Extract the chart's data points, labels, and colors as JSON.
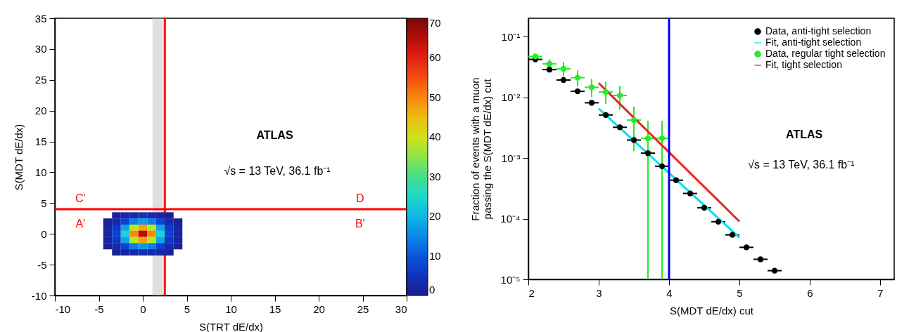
{
  "chart_data": [
    {
      "type": "scatter",
      "xlabel": "S(TRT dE/dx)",
      "ylabel": "S(MDT dE/dx)",
      "marker": "square",
      "x": [
        -3,
        -2,
        -1,
        0,
        1,
        2,
        3,
        -4,
        -3,
        -2,
        -1,
        0,
        1,
        2,
        3,
        4,
        -4,
        -3,
        -2,
        -1,
        0,
        1,
        2,
        3,
        4,
        -4,
        -3,
        -2,
        -1,
        0,
        1,
        2,
        3,
        4,
        -4,
        -3,
        -2,
        -1,
        0,
        1,
        2,
        3,
        4,
        -4,
        -3,
        -2,
        -1,
        0,
        1,
        2,
        3,
        4,
        -3,
        -2,
        -1,
        0,
        1,
        2,
        3
      ],
      "values": [
        3,
        3,
        3,
        3,
        3,
        3,
        3,
        2,
        2,
        2,
        2,
        2,
        2,
        2,
        2,
        2,
        1,
        1,
        1,
        1,
        1,
        1,
        1,
        1,
        1,
        0,
        0,
        0,
        0,
        0,
        0,
        0,
        0,
        0,
        -1,
        -1,
        -1,
        -1,
        -1,
        -1,
        -1,
        -1,
        -1,
        -2,
        -2,
        -2,
        -2,
        -2,
        -2,
        -2,
        -2,
        -2,
        -3,
        -3,
        -3,
        -3,
        -3,
        -3,
        -3
      ],
      "cvalues": [
        1,
        2,
        3,
        4,
        3,
        2,
        1,
        1,
        3,
        8,
        14,
        17,
        14,
        8,
        3,
        1,
        2,
        6,
        18,
        38,
        48,
        38,
        18,
        6,
        2,
        2,
        8,
        24,
        50,
        65,
        50,
        24,
        8,
        2,
        2,
        6,
        18,
        38,
        48,
        38,
        18,
        6,
        2,
        1,
        3,
        8,
        14,
        17,
        14,
        8,
        3,
        1,
        1,
        2,
        3,
        4,
        3,
        2,
        1
      ],
      "clim": [
        0,
        70
      ],
      "cticks": [
        0,
        10,
        20,
        30,
        40,
        50,
        60,
        70
      ],
      "xlim": [
        -10,
        30
      ],
      "xticks": [
        -10,
        -5,
        0,
        5,
        10,
        15,
        20,
        25,
        30
      ],
      "ylim": [
        -10,
        35
      ],
      "yticks": [
        -10,
        -5,
        0,
        5,
        10,
        15,
        20,
        25,
        30,
        35
      ],
      "bands": [
        {
          "axis": "x",
          "from": 1.1,
          "to": 2.3,
          "color": "#bbbbbb"
        }
      ],
      "ref_lines": [
        {
          "axis": "x",
          "value": 2.5,
          "color": "#ff0000"
        },
        {
          "axis": "y",
          "value": 4,
          "color": "#ff0000"
        }
      ],
      "annotations": [
        "ATLAS",
        "√s = 13 TeV, 36.1 fb⁻¹",
        "C'",
        "D",
        "A'",
        "B'"
      ]
    },
    {
      "type": "scatter",
      "xlabel": "S(MDT dE/dx) cut",
      "ylabel": "Fraction of events with a muon\npassing the S(MDT dE/dx) cut",
      "log": true,
      "marker": "circle",
      "legend": "top right",
      "xlim": [
        2,
        7.2
      ],
      "xticks": [
        2,
        3,
        4,
        5,
        6,
        7
      ],
      "ylim": [
        1e-05,
        0.2
      ],
      "yticks": [
        {
          "value": 1e-05,
          "label": "10⁻⁵"
        },
        {
          "value": 0.0001,
          "label": "10⁻⁴"
        },
        {
          "value": 0.001,
          "label": "10⁻³"
        },
        {
          "value": 0.01,
          "label": "10⁻²"
        },
        {
          "value": 0.1,
          "label": "10⁻¹"
        }
      ],
      "series": [
        {
          "name": "Data, anti-tight selection",
          "type": "scatter",
          "color": "#000000",
          "x": [
            2.1,
            2.3,
            2.5,
            2.7,
            2.9,
            3.1,
            3.3,
            3.5,
            3.7,
            3.9,
            4.1,
            4.3,
            4.5,
            4.7,
            4.9,
            5.1,
            5.3,
            5.5
          ],
          "values": [
            0.042,
            0.0285,
            0.0192,
            0.0125,
            0.0081,
            0.0051,
            0.0032,
            0.00197,
            0.0012,
            0.00073,
            0.00043,
            0.00026,
            0.000151,
            8.9e-05,
            5.4e-05,
            3.37e-05,
            2.14e-05,
            1.39e-05
          ],
          "xerrors": [
            0.1,
            0.1,
            0.1,
            0.1,
            0.1,
            0.1,
            0.1,
            0.1,
            0.1,
            0.1,
            0.1,
            0.1,
            0.1,
            0.1,
            0.1,
            0.1,
            0.1,
            0.1
          ]
        },
        {
          "name": "Fit, anti-tight selection",
          "type": "line",
          "marker": "none",
          "color": "#00e0ee",
          "x": [
            3,
            5
          ],
          "values": [
            0.0065,
            4.88e-05
          ]
        },
        {
          "name": "Data, regular tight selection",
          "type": "scatter",
          "color": "#22ee22",
          "x": [
            2.1,
            2.3,
            2.5,
            2.7,
            2.9,
            3.1,
            3.3,
            3.5,
            3.7,
            3.9
          ],
          "values": [
            0.047,
            0.0355,
            0.0294,
            0.021,
            0.0146,
            0.0122,
            0.0107,
            0.0042,
            0.0021,
            0.0021
          ],
          "errors": [
            [
              0.043,
              0.052
            ],
            [
              0.029,
              0.042
            ],
            [
              0.0223,
              0.038
            ],
            [
              0.0149,
              0.0275
            ],
            [
              0.0101,
              0.02
            ],
            [
              0.0078,
              0.018
            ],
            [
              0.0063,
              0.0154
            ],
            [
              0.00129,
              0.007
            ],
            [
              1e-05,
              0.0041
            ],
            [
              1e-05,
              0.0041
            ]
          ],
          "xerrors": [
            0.1,
            0.1,
            0.1,
            0.1,
            0.1,
            0.1,
            0.1,
            0.1,
            0.1,
            0.1
          ]
        },
        {
          "name": "Fit, tight selection",
          "type": "line",
          "marker": "none",
          "color": "#ee2222",
          "x": [
            3,
            5
          ],
          "values": [
            0.0171,
            9e-05
          ]
        }
      ],
      "ref_lines": [
        {
          "axis": "x",
          "value": 4,
          "color": "#0000ee"
        }
      ],
      "annotations": [
        "ATLAS",
        "√s = 13 TeV, 36.1 fb⁻¹"
      ]
    }
  ]
}
